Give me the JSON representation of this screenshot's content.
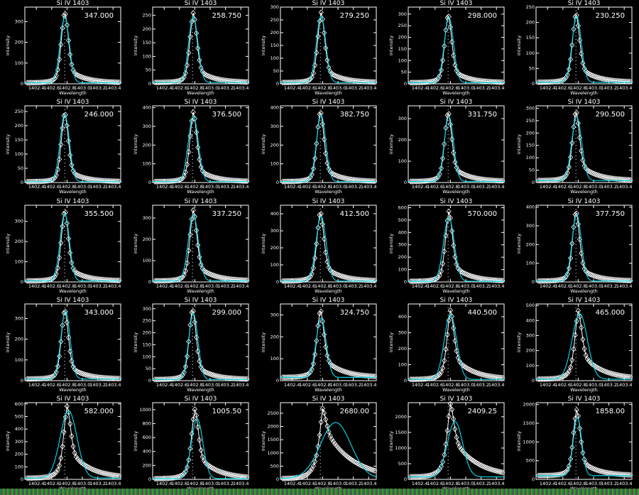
{
  "colors": {
    "background": "#000000",
    "observed": "#ffffff",
    "fit": "#00d0e0",
    "axes": "#ffffff"
  },
  "chart_data": {
    "type": "line",
    "layout": "grid 5x5",
    "common": {
      "title": "Si IV 1403",
      "xlabel": "Wavelength",
      "ylabel": "Intensity",
      "xlim": [
        1402.25,
        1403.5
      ],
      "xticks": [
        "1402.4",
        "1402.6",
        "1402.8",
        "1403.0",
        "1403.2",
        "1403.4"
      ],
      "reference_line": 1402.77,
      "series": [
        {
          "marker": "diamond",
          "color": "#ffffff"
        },
        {
          "marker": "none",
          "color": "#00d0e0"
        }
      ]
    },
    "panels": [
      {
        "label": "347.000",
        "ylim": [
          0,
          370
        ],
        "ystep": 100,
        "peak": 347,
        "center": 1402.77,
        "wing": 0.25,
        "bg": 5,
        "fit_peak": 320,
        "fit_center": 1402.77,
        "fit_width": 0.06
      },
      {
        "label": "258.750",
        "ylim": [
          0,
          280
        ],
        "ystep": 50,
        "peak": 258.75,
        "center": 1402.78,
        "wing": 0.25,
        "bg": 5,
        "fit_peak": 245,
        "fit_center": 1402.78,
        "fit_width": 0.06
      },
      {
        "label": "279.250",
        "ylim": [
          0,
          300
        ],
        "ystep": 50,
        "peak": 279.25,
        "center": 1402.78,
        "wing": 0.25,
        "bg": 5,
        "fit_peak": 265,
        "fit_center": 1402.78,
        "fit_width": 0.06
      },
      {
        "label": "298.000",
        "ylim": [
          0,
          330
        ],
        "ystep": 50,
        "peak": 298,
        "center": 1402.77,
        "wing": 0.25,
        "bg": 5,
        "fit_peak": 285,
        "fit_center": 1402.78,
        "fit_width": 0.06
      },
      {
        "label": "230.250",
        "ylim": [
          0,
          250
        ],
        "ystep": 50,
        "peak": 230.25,
        "center": 1402.77,
        "wing": 0.28,
        "bg": 5,
        "fit_peak": 220,
        "fit_center": 1402.78,
        "fit_width": 0.06
      },
      {
        "label": "246.000",
        "ylim": [
          0,
          270
        ],
        "ystep": 50,
        "peak": 246,
        "center": 1402.77,
        "wing": 0.22,
        "bg": 3,
        "fit_peak": 240,
        "fit_center": 1402.77,
        "fit_width": 0.06
      },
      {
        "label": "376.500",
        "ylim": [
          0,
          410
        ],
        "ystep": 100,
        "peak": 376.5,
        "center": 1402.78,
        "wing": 0.25,
        "bg": 5,
        "fit_peak": 355,
        "fit_center": 1402.78,
        "fit_width": 0.065
      },
      {
        "label": "382.750",
        "ylim": [
          0,
          410
        ],
        "ystep": 100,
        "peak": 382.75,
        "center": 1402.77,
        "wing": 0.25,
        "bg": 5,
        "fit_peak": 360,
        "fit_center": 1402.78,
        "fit_width": 0.06
      },
      {
        "label": "331.750",
        "ylim": [
          0,
          360
        ],
        "ystep": 100,
        "peak": 331.75,
        "center": 1402.77,
        "wing": 0.28,
        "bg": 5,
        "fit_peak": 310,
        "fit_center": 1402.78,
        "fit_width": 0.06
      },
      {
        "label": "290.500",
        "ylim": [
          0,
          310
        ],
        "ystep": 50,
        "peak": 290.5,
        "center": 1402.77,
        "wing": 0.3,
        "bg": 8,
        "fit_peak": 265,
        "fit_center": 1402.78,
        "fit_width": 0.065
      },
      {
        "label": "355.500",
        "ylim": [
          0,
          380
        ],
        "ystep": 100,
        "peak": 355.5,
        "center": 1402.77,
        "wing": 0.25,
        "bg": 5,
        "fit_peak": 340,
        "fit_center": 1402.77,
        "fit_width": 0.06
      },
      {
        "label": "337.250",
        "ylim": [
          0,
          360
        ],
        "ystep": 100,
        "peak": 337.25,
        "center": 1402.78,
        "wing": 0.28,
        "bg": 5,
        "fit_peak": 315,
        "fit_center": 1402.78,
        "fit_width": 0.065
      },
      {
        "label": "412.500",
        "ylim": [
          0,
          450
        ],
        "ystep": 100,
        "peak": 412.5,
        "center": 1402.77,
        "wing": 0.28,
        "bg": 5,
        "fit_peak": 385,
        "fit_center": 1402.78,
        "fit_width": 0.065
      },
      {
        "label": "570.000",
        "ylim": [
          0,
          620
        ],
        "ystep": 100,
        "peak": 570,
        "center": 1402.78,
        "wing": 0.3,
        "bg": 5,
        "fit_peak": 520,
        "fit_center": 1402.78,
        "fit_width": 0.07
      },
      {
        "label": "377.750",
        "ylim": [
          0,
          410
        ],
        "ystep": 100,
        "peak": 377.75,
        "center": 1402.77,
        "wing": 0.25,
        "bg": 5,
        "fit_peak": 360,
        "fit_center": 1402.78,
        "fit_width": 0.06
      },
      {
        "label": "343.000",
        "ylim": [
          0,
          370
        ],
        "ystep": 100,
        "peak": 343,
        "center": 1402.77,
        "wing": 0.25,
        "bg": 8,
        "fit_peak": 335,
        "fit_center": 1402.78,
        "fit_width": 0.06
      },
      {
        "label": "299.000",
        "ylim": [
          0,
          320
        ],
        "ystep": 50,
        "peak": 299,
        "center": 1402.77,
        "wing": 0.25,
        "bg": 5,
        "fit_peak": 280,
        "fit_center": 1402.78,
        "fit_width": 0.06
      },
      {
        "label": "324.750",
        "ylim": [
          0,
          350
        ],
        "ystep": 100,
        "peak": 324.75,
        "center": 1402.77,
        "wing": 0.35,
        "bg": 15,
        "fit_peak": 285,
        "fit_center": 1402.78,
        "fit_width": 0.065
      },
      {
        "label": "440.500",
        "ylim": [
          0,
          480
        ],
        "ystep": 100,
        "peak": 440.5,
        "center": 1402.8,
        "wing": 0.4,
        "bg": 8,
        "fit_peak": 415,
        "fit_center": 1402.8,
        "fit_width": 0.08
      },
      {
        "label": "465.000",
        "ylim": [
          0,
          510
        ],
        "ystep": 100,
        "peak": 465,
        "center": 1402.8,
        "wing": 0.45,
        "bg": 10,
        "fit_peak": 445,
        "fit_center": 1402.82,
        "fit_width": 0.1
      },
      {
        "label": "582.000",
        "ylim": [
          0,
          610
        ],
        "ystep": 100,
        "peak": 582,
        "center": 1402.8,
        "wing": 0.45,
        "bg": 10,
        "fit_peak": 545,
        "fit_center": 1402.82,
        "fit_width": 0.11
      },
      {
        "label": "1005.50",
        "ylim": [
          0,
          1100
        ],
        "ystep": 200,
        "peak": 1005.5,
        "center": 1402.8,
        "wing": 0.4,
        "bg": 10,
        "fit_peak": 870,
        "fit_center": 1402.83,
        "fit_width": 0.075
      },
      {
        "label": "2680.00",
        "ylim": [
          0,
          2900
        ],
        "ystep": 500,
        "peak": 2680,
        "center": 1402.8,
        "wing": 0.78,
        "bg": 30,
        "fit_peak": 2150,
        "fit_center": 1402.97,
        "fit_width": 0.2
      },
      {
        "label": "2409.25",
        "ylim": [
          0,
          2450
        ],
        "ystep": 500,
        "peak": 2409.25,
        "center": 1402.8,
        "wing": 0.6,
        "bg": 80,
        "fit_peak": 1850,
        "fit_center": 1402.86,
        "fit_width": 0.1
      },
      {
        "label": "1858.00",
        "ylim": [
          0,
          2050
        ],
        "ystep": 500,
        "peak": 1858,
        "center": 1402.78,
        "wing": 0.3,
        "bg": 100,
        "fit_peak": 1650,
        "fit_center": 1402.79,
        "fit_width": 0.055
      }
    ]
  }
}
